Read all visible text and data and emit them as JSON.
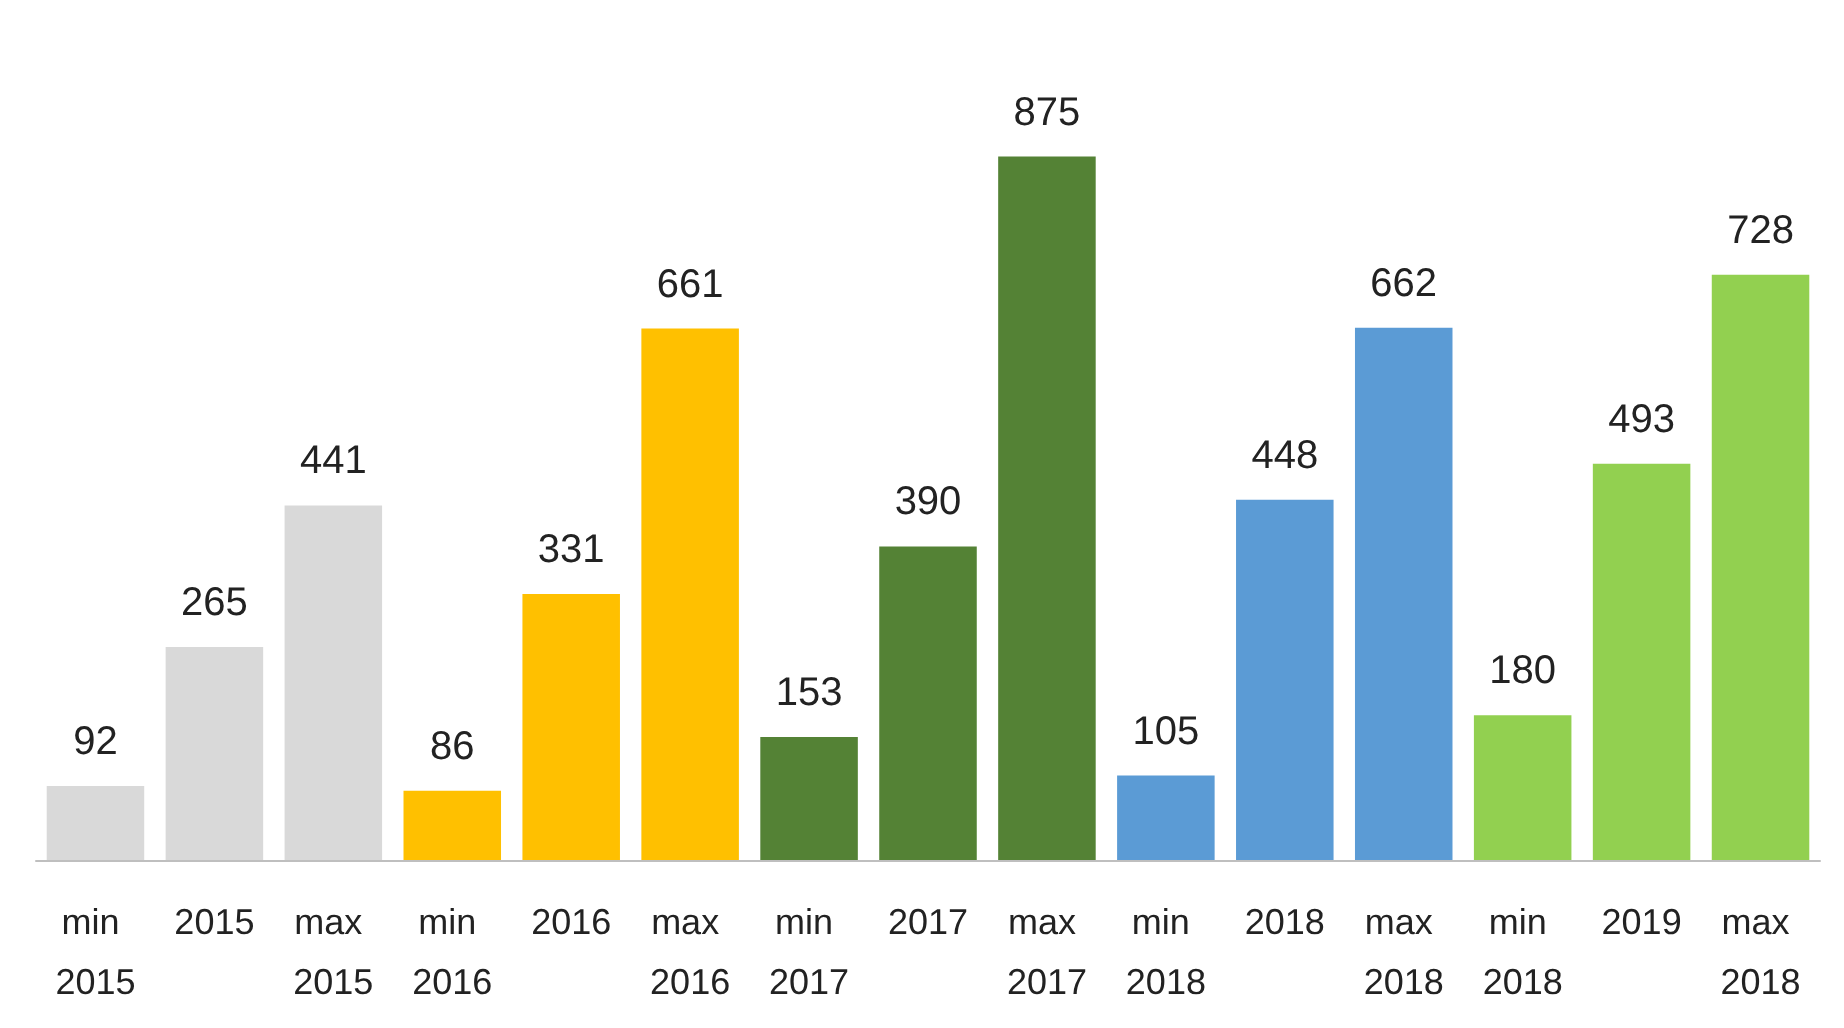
{
  "chart_data": {
    "type": "bar",
    "categories": [
      "min 2015",
      "2015",
      "max 2015",
      "min 2016",
      "2016",
      "max 2016",
      "min 2017",
      "2017",
      "max 2017",
      "min 2018",
      "2018",
      "max 2018",
      "min 2018",
      "2019",
      "max 2018"
    ],
    "values": [
      92,
      265,
      441,
      86,
      331,
      661,
      153,
      390,
      875,
      105,
      448,
      662,
      180,
      493,
      728
    ],
    "colors": [
      "#d9d9d9",
      "#d9d9d9",
      "#d9d9d9",
      "#ffc000",
      "#ffc000",
      "#ffc000",
      "#548235",
      "#548235",
      "#548235",
      "#5b9bd5",
      "#5b9bd5",
      "#5b9bd5",
      "#92d050",
      "#92d050",
      "#92d050"
    ],
    "data_labels": true
  }
}
